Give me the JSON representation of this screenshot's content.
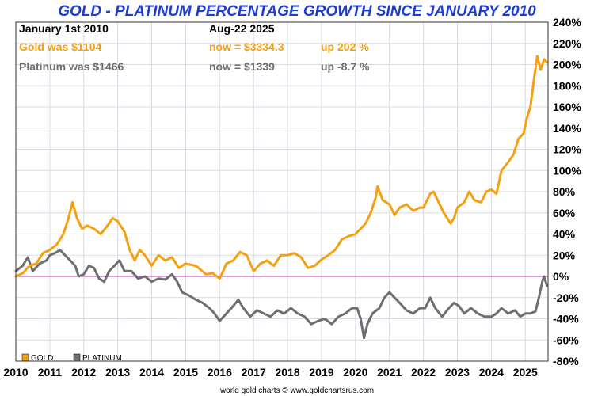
{
  "chart_data": {
    "type": "line",
    "title": "GOLD - PLATINUM PERCENTAGE GROWTH SINCE JANUARY 2010",
    "source": "world gold charts © www.goldchartsrus.com",
    "header": {
      "start_label": "January 1st 2010",
      "end_label": "Aug-22  2025",
      "gold": {
        "was": "Gold was $1104",
        "now": "now = $3334.3",
        "change": "up 202 %"
      },
      "platinum": {
        "was": "Platinum was $1466",
        "now": "now = $1339",
        "change": "up -8.7 %"
      }
    },
    "xlim": [
      2010,
      2025.67
    ],
    "ylim": [
      -80,
      240
    ],
    "x_ticks": [
      "2010",
      "2011",
      "2012",
      "2013",
      "2014",
      "2015",
      "2016",
      "2017",
      "2018",
      "2019",
      "2020",
      "2021",
      "2022",
      "2023",
      "2024",
      "2025"
    ],
    "y_ticks": [
      "240%",
      "220%",
      "200%",
      "180%",
      "160%",
      "140%",
      "120%",
      "100%",
      "80%",
      "60%",
      "40%",
      "20%",
      "0%",
      "-20%",
      "-40%",
      "-60%",
      "-80%"
    ],
    "grid": true,
    "legend_position": "bottom-left",
    "zero_line_color": "#cc33cc",
    "series": [
      {
        "name": "GOLD",
        "color": "#f5a011",
        "points": [
          [
            2010.0,
            0
          ],
          [
            2010.2,
            3
          ],
          [
            2010.4,
            10
          ],
          [
            2010.6,
            12
          ],
          [
            2010.8,
            22
          ],
          [
            2011.0,
            25
          ],
          [
            2011.2,
            30
          ],
          [
            2011.4,
            40
          ],
          [
            2011.55,
            55
          ],
          [
            2011.67,
            70
          ],
          [
            2011.8,
            55
          ],
          [
            2011.95,
            45
          ],
          [
            2012.1,
            48
          ],
          [
            2012.3,
            45
          ],
          [
            2012.5,
            40
          ],
          [
            2012.7,
            48
          ],
          [
            2012.85,
            55
          ],
          [
            2013.0,
            52
          ],
          [
            2013.2,
            42
          ],
          [
            2013.35,
            25
          ],
          [
            2013.5,
            15
          ],
          [
            2013.65,
            25
          ],
          [
            2013.8,
            20
          ],
          [
            2014.0,
            10
          ],
          [
            2014.2,
            20
          ],
          [
            2014.4,
            15
          ],
          [
            2014.6,
            18
          ],
          [
            2014.8,
            8
          ],
          [
            2015.0,
            12
          ],
          [
            2015.3,
            10
          ],
          [
            2015.6,
            2
          ],
          [
            2015.8,
            3
          ],
          [
            2016.0,
            -2
          ],
          [
            2016.2,
            12
          ],
          [
            2016.4,
            15
          ],
          [
            2016.6,
            23
          ],
          [
            2016.8,
            20
          ],
          [
            2017.0,
            5
          ],
          [
            2017.2,
            12
          ],
          [
            2017.4,
            15
          ],
          [
            2017.6,
            10
          ],
          [
            2017.8,
            20
          ],
          [
            2018.0,
            20
          ],
          [
            2018.2,
            22
          ],
          [
            2018.4,
            18
          ],
          [
            2018.6,
            8
          ],
          [
            2018.8,
            10
          ],
          [
            2019.0,
            16
          ],
          [
            2019.2,
            20
          ],
          [
            2019.4,
            25
          ],
          [
            2019.6,
            35
          ],
          [
            2019.8,
            38
          ],
          [
            2020.0,
            40
          ],
          [
            2020.15,
            45
          ],
          [
            2020.3,
            50
          ],
          [
            2020.45,
            60
          ],
          [
            2020.6,
            75
          ],
          [
            2020.65,
            85
          ],
          [
            2020.8,
            72
          ],
          [
            2021.0,
            68
          ],
          [
            2021.15,
            58
          ],
          [
            2021.3,
            65
          ],
          [
            2021.5,
            68
          ],
          [
            2021.7,
            62
          ],
          [
            2021.9,
            65
          ],
          [
            2022.0,
            65
          ],
          [
            2022.2,
            78
          ],
          [
            2022.3,
            80
          ],
          [
            2022.45,
            70
          ],
          [
            2022.6,
            60
          ],
          [
            2022.8,
            50
          ],
          [
            2022.9,
            55
          ],
          [
            2023.0,
            65
          ],
          [
            2023.2,
            70
          ],
          [
            2023.35,
            80
          ],
          [
            2023.5,
            72
          ],
          [
            2023.7,
            70
          ],
          [
            2023.85,
            80
          ],
          [
            2024.0,
            82
          ],
          [
            2024.15,
            78
          ],
          [
            2024.3,
            100
          ],
          [
            2024.5,
            108
          ],
          [
            2024.65,
            115
          ],
          [
            2024.8,
            130
          ],
          [
            2024.95,
            135
          ],
          [
            2025.05,
            150
          ],
          [
            2025.15,
            160
          ],
          [
            2025.25,
            185
          ],
          [
            2025.35,
            208
          ],
          [
            2025.45,
            195
          ],
          [
            2025.55,
            205
          ],
          [
            2025.64,
            202
          ]
        ]
      },
      {
        "name": "PLATINUM",
        "color": "#6f6f6f",
        "points": [
          [
            2010.0,
            5
          ],
          [
            2010.2,
            10
          ],
          [
            2010.35,
            18
          ],
          [
            2010.5,
            5
          ],
          [
            2010.7,
            12
          ],
          [
            2010.9,
            15
          ],
          [
            2011.0,
            20
          ],
          [
            2011.15,
            22
          ],
          [
            2011.3,
            25
          ],
          [
            2011.45,
            20
          ],
          [
            2011.6,
            15
          ],
          [
            2011.75,
            10
          ],
          [
            2011.85,
            0
          ],
          [
            2012.0,
            2
          ],
          [
            2012.15,
            10
          ],
          [
            2012.3,
            8
          ],
          [
            2012.45,
            -2
          ],
          [
            2012.6,
            -5
          ],
          [
            2012.75,
            5
          ],
          [
            2012.9,
            10
          ],
          [
            2013.05,
            15
          ],
          [
            2013.2,
            5
          ],
          [
            2013.4,
            5
          ],
          [
            2013.6,
            -2
          ],
          [
            2013.8,
            0
          ],
          [
            2014.0,
            -5
          ],
          [
            2014.2,
            -2
          ],
          [
            2014.4,
            -3
          ],
          [
            2014.6,
            2
          ],
          [
            2014.75,
            -5
          ],
          [
            2014.9,
            -15
          ],
          [
            2015.1,
            -18
          ],
          [
            2015.3,
            -22
          ],
          [
            2015.5,
            -25
          ],
          [
            2015.7,
            -30
          ],
          [
            2015.85,
            -35
          ],
          [
            2016.0,
            -42
          ],
          [
            2016.2,
            -35
          ],
          [
            2016.4,
            -28
          ],
          [
            2016.55,
            -22
          ],
          [
            2016.7,
            -30
          ],
          [
            2016.9,
            -38
          ],
          [
            2017.1,
            -32
          ],
          [
            2017.3,
            -35
          ],
          [
            2017.5,
            -38
          ],
          [
            2017.7,
            -32
          ],
          [
            2017.9,
            -35
          ],
          [
            2018.1,
            -30
          ],
          [
            2018.3,
            -35
          ],
          [
            2018.5,
            -38
          ],
          [
            2018.7,
            -45
          ],
          [
            2018.9,
            -42
          ],
          [
            2019.1,
            -40
          ],
          [
            2019.3,
            -45
          ],
          [
            2019.5,
            -38
          ],
          [
            2019.7,
            -35
          ],
          [
            2019.9,
            -30
          ],
          [
            2020.05,
            -30
          ],
          [
            2020.15,
            -40
          ],
          [
            2020.25,
            -58
          ],
          [
            2020.35,
            -45
          ],
          [
            2020.5,
            -35
          ],
          [
            2020.7,
            -30
          ],
          [
            2020.85,
            -20
          ],
          [
            2021.0,
            -15
          ],
          [
            2021.15,
            -20
          ],
          [
            2021.3,
            -25
          ],
          [
            2021.5,
            -32
          ],
          [
            2021.7,
            -35
          ],
          [
            2021.9,
            -30
          ],
          [
            2022.05,
            -30
          ],
          [
            2022.2,
            -20
          ],
          [
            2022.35,
            -30
          ],
          [
            2022.55,
            -38
          ],
          [
            2022.75,
            -30
          ],
          [
            2022.9,
            -25
          ],
          [
            2023.05,
            -28
          ],
          [
            2023.2,
            -35
          ],
          [
            2023.4,
            -30
          ],
          [
            2023.6,
            -35
          ],
          [
            2023.8,
            -38
          ],
          [
            2024.0,
            -38
          ],
          [
            2024.15,
            -35
          ],
          [
            2024.3,
            -30
          ],
          [
            2024.5,
            -35
          ],
          [
            2024.7,
            -32
          ],
          [
            2024.85,
            -38
          ],
          [
            2025.0,
            -35
          ],
          [
            2025.15,
            -35
          ],
          [
            2025.3,
            -33
          ],
          [
            2025.4,
            -20
          ],
          [
            2025.5,
            -5
          ],
          [
            2025.55,
            0
          ],
          [
            2025.64,
            -9
          ]
        ]
      }
    ]
  }
}
